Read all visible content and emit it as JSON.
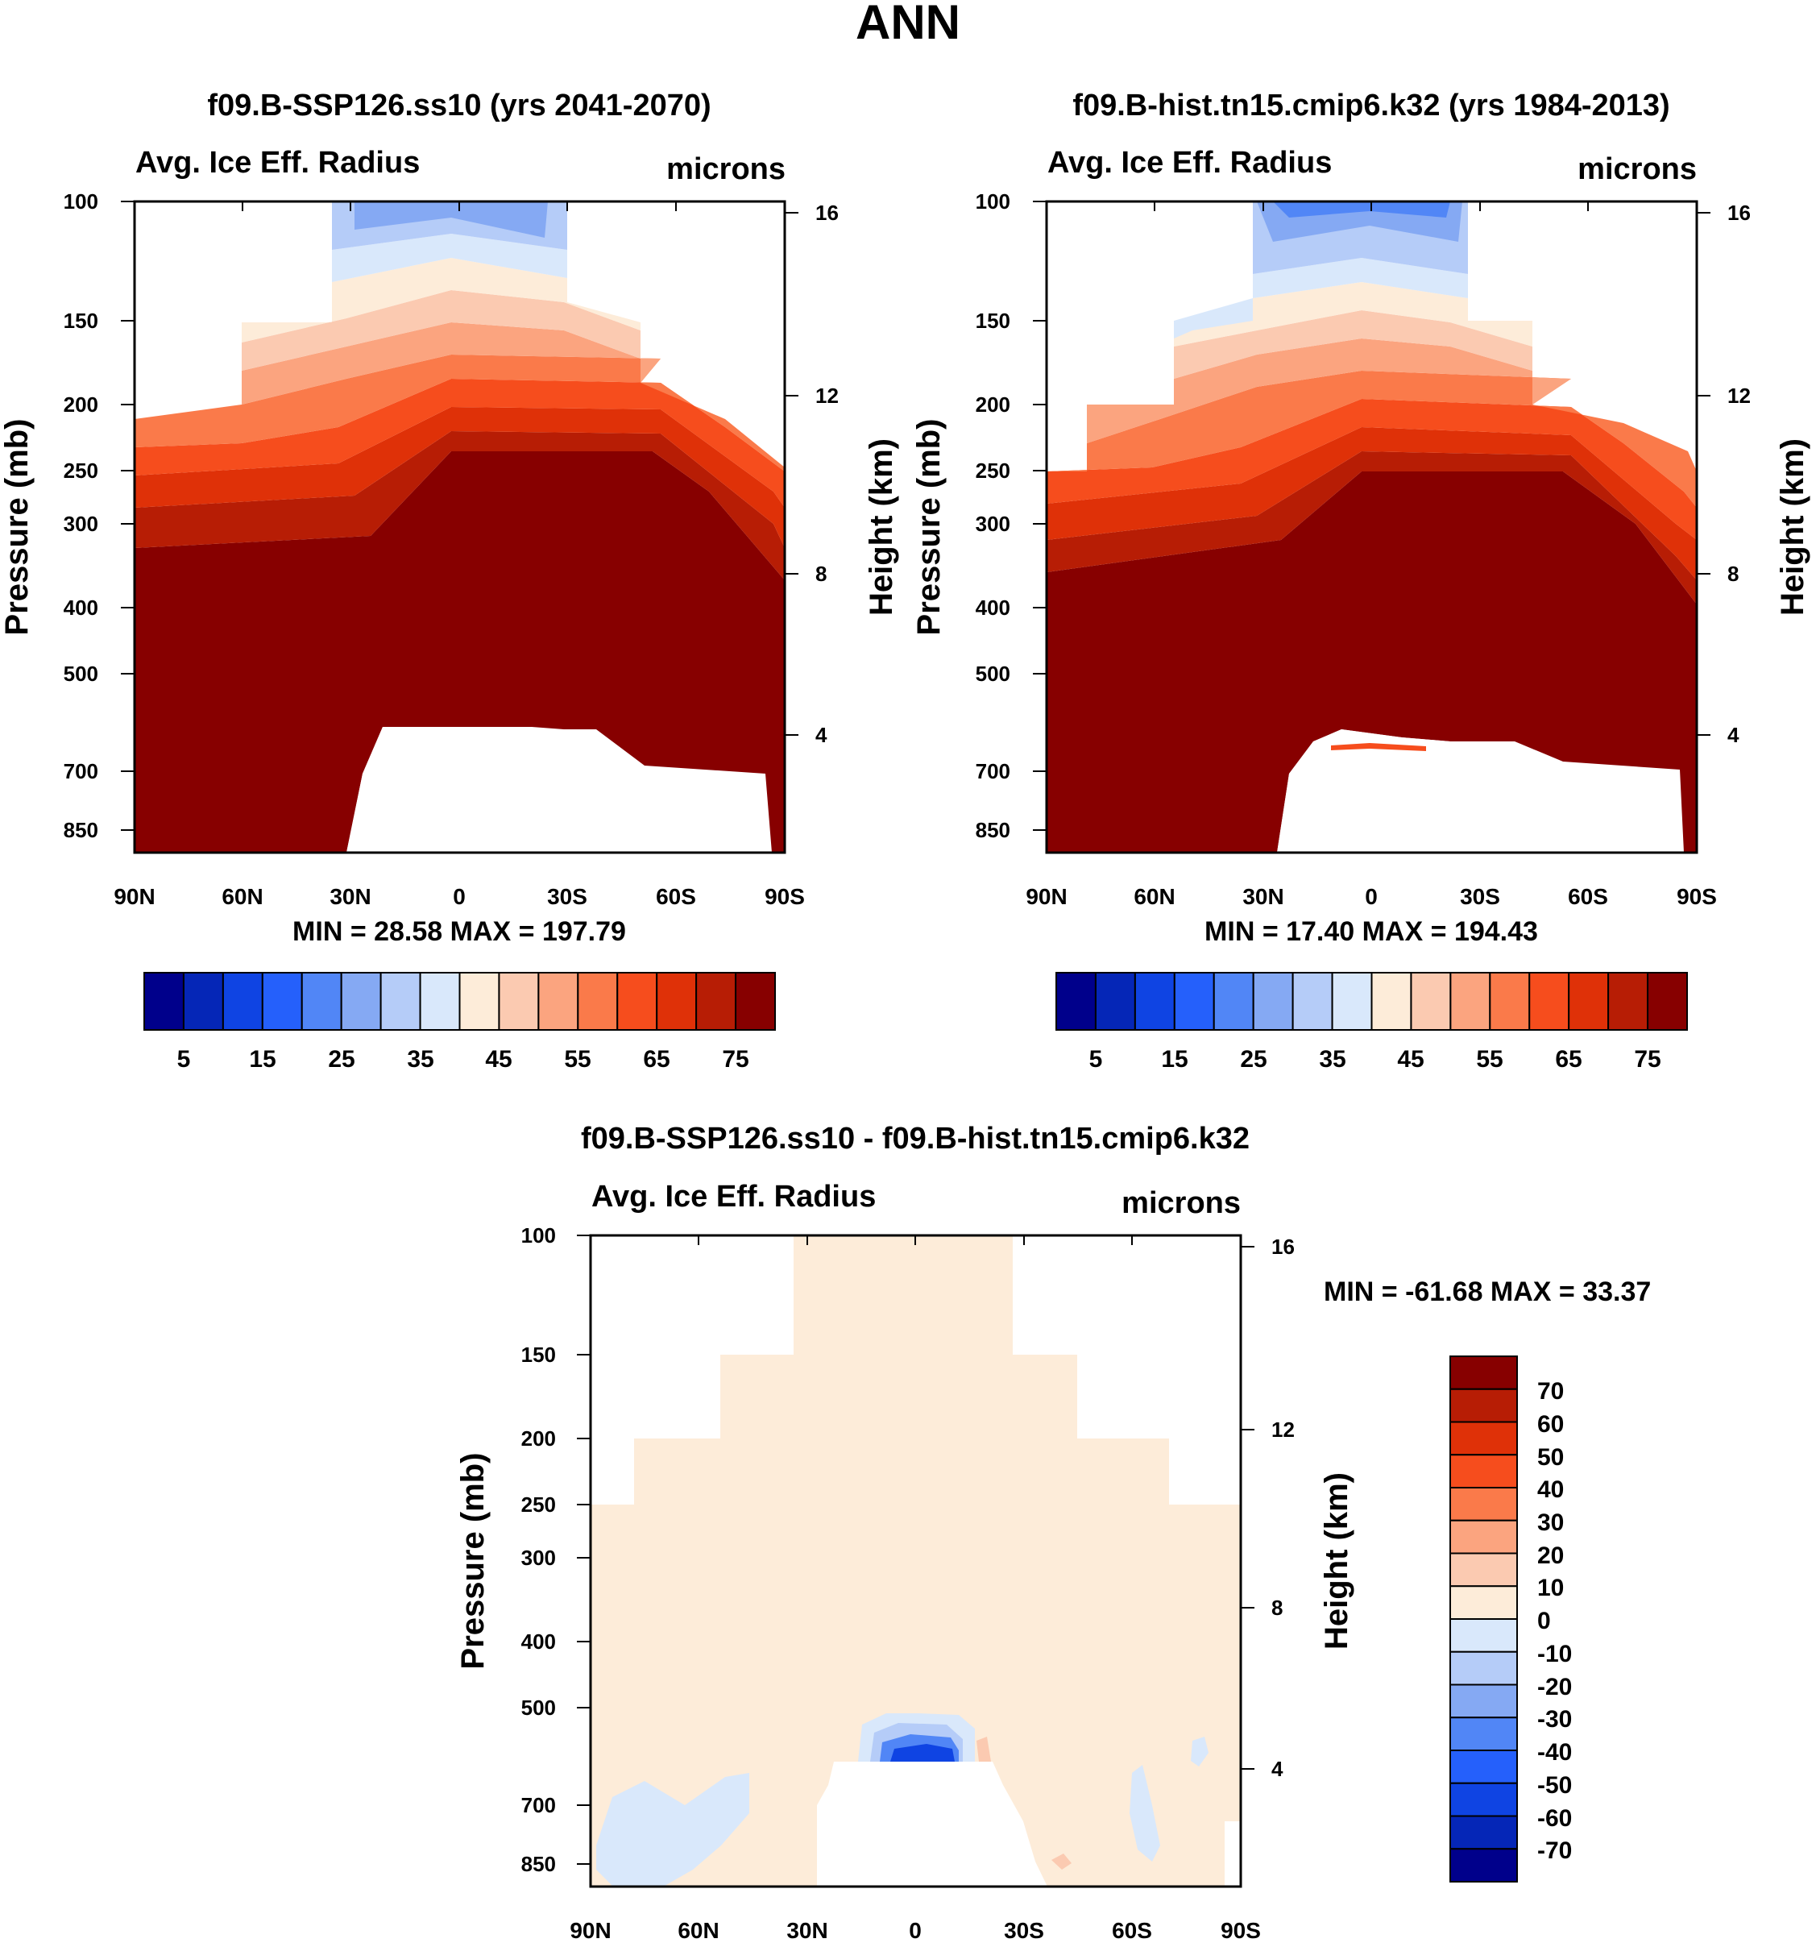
{
  "figure_title": "ANN",
  "chart_data": [
    {
      "type": "heatmap",
      "panel": "top-left",
      "title": "f09.B-SSP126.ss10 (yrs 2041-2070)",
      "left_label": "Avg. Ice Eff. Radius",
      "units": "microns",
      "ylabel": "Pressure (mb)",
      "y2label": "Height (km)",
      "x_ticks": [
        "90N",
        "60N",
        "30N",
        "0",
        "30S",
        "60S",
        "90S"
      ],
      "y_ticks": [
        "100",
        "150",
        "200",
        "250",
        "300",
        "400",
        "500",
        "700",
        "850"
      ],
      "y2_ticks": [
        "16",
        "12",
        "8",
        "4"
      ],
      "stats": "MIN =  28.58   MAX = 197.79",
      "colorbar": {
        "orientation": "horizontal",
        "labels": [
          "5",
          "15",
          "25",
          "35",
          "45",
          "55",
          "65",
          "75"
        ]
      }
    },
    {
      "type": "heatmap",
      "panel": "top-right",
      "title": "f09.B-hist.tn15.cmip6.k32 (yrs 1984-2013)",
      "left_label": "Avg. Ice Eff. Radius",
      "units": "microns",
      "ylabel": "Pressure (mb)",
      "y2label": "Height (km)",
      "x_ticks": [
        "90N",
        "60N",
        "30N",
        "0",
        "30S",
        "60S",
        "90S"
      ],
      "y_ticks": [
        "100",
        "150",
        "200",
        "250",
        "300",
        "400",
        "500",
        "700",
        "850"
      ],
      "y2_ticks": [
        "16",
        "12",
        "8",
        "4"
      ],
      "stats": "MIN =  17.40   MAX = 194.43",
      "colorbar": {
        "orientation": "horizontal",
        "labels": [
          "5",
          "15",
          "25",
          "35",
          "45",
          "55",
          "65",
          "75"
        ]
      }
    },
    {
      "type": "heatmap",
      "panel": "bottom",
      "title": "f09.B-SSP126.ss10 - f09.B-hist.tn15.cmip6.k32",
      "left_label": "Avg. Ice Eff. Radius",
      "units": "microns",
      "ylabel": "Pressure (mb)",
      "y2label": "Height (km)",
      "x_ticks": [
        "90N",
        "60N",
        "30N",
        "0",
        "30S",
        "60S",
        "90S"
      ],
      "y_ticks": [
        "100",
        "150",
        "200",
        "250",
        "300",
        "400",
        "500",
        "700",
        "850"
      ],
      "y2_ticks": [
        "16",
        "12",
        "8",
        "4"
      ],
      "stats": "MIN = -61.68  MAX =  33.37",
      "colorbar": {
        "orientation": "vertical",
        "labels": [
          "70",
          "60",
          "50",
          "40",
          "30",
          "20",
          "10",
          "0",
          "-10",
          "-20",
          "-30",
          "-40",
          "-50",
          "-60",
          "-70"
        ]
      }
    }
  ],
  "colors": {
    "main_scale": [
      "#00008b",
      "#0526b7",
      "#0f44e3",
      "#2560fb",
      "#5186f6",
      "#85a9f3",
      "#b5ccf8",
      "#d9e8fb",
      "#fdecd9",
      "#fbcab1",
      "#fba47f",
      "#fa7a4a",
      "#f64d1d",
      "#df3108",
      "#b71d05",
      "#870000"
    ],
    "diff_scale": [
      "#870000",
      "#b71d05",
      "#df3108",
      "#f64d1d",
      "#fa7a4a",
      "#fba47f",
      "#fbcab1",
      "#fdecd9",
      "#d9e8fb",
      "#b5ccf8",
      "#85a9f3",
      "#5186f6",
      "#2560fb",
      "#0f44e3",
      "#0526b7",
      "#00008b"
    ]
  }
}
